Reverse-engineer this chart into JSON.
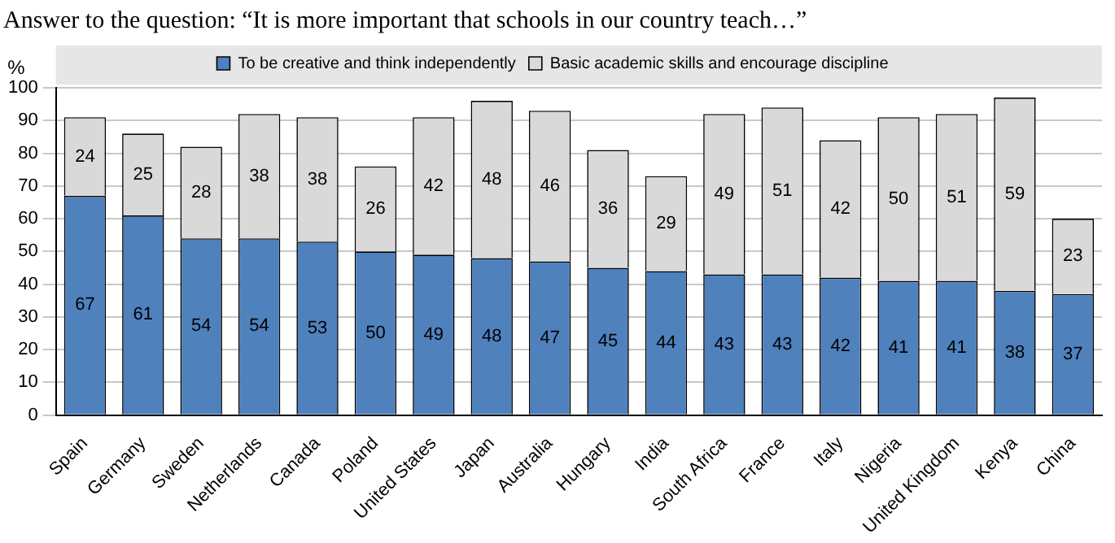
{
  "chart_data": {
    "type": "bar",
    "title": "Answer to the question: “It is more important that schools in our country teach…”",
    "ylabel": "%",
    "categories": [
      "Spain",
      "Germany",
      "Sweden",
      "Netherlands",
      "Canada",
      "Poland",
      "United States",
      "Japan",
      "Australia",
      "Hungary",
      "India",
      "South Africa",
      "France",
      "Italy",
      "Nigeria",
      "United Kingdom",
      "Kenya",
      "China"
    ],
    "series": [
      {
        "name": "To be creative and think independently",
        "color": "#4f81bd",
        "values": [
          67,
          61,
          54,
          54,
          53,
          50,
          49,
          48,
          47,
          45,
          44,
          43,
          43,
          42,
          41,
          41,
          38,
          37
        ]
      },
      {
        "name": "Basic academic skills and encourage discipline",
        "color": "#d9d9d9",
        "values": [
          24,
          25,
          28,
          38,
          38,
          26,
          42,
          48,
          46,
          36,
          29,
          49,
          51,
          42,
          50,
          51,
          59,
          23
        ]
      }
    ],
    "stacked": true,
    "ylim": [
      0,
      100
    ],
    "yticks": [
      0,
      10,
      20,
      30,
      40,
      50,
      60,
      70,
      80,
      90,
      100
    ],
    "grid": "y",
    "legend": "top",
    "data_labels": true
  }
}
